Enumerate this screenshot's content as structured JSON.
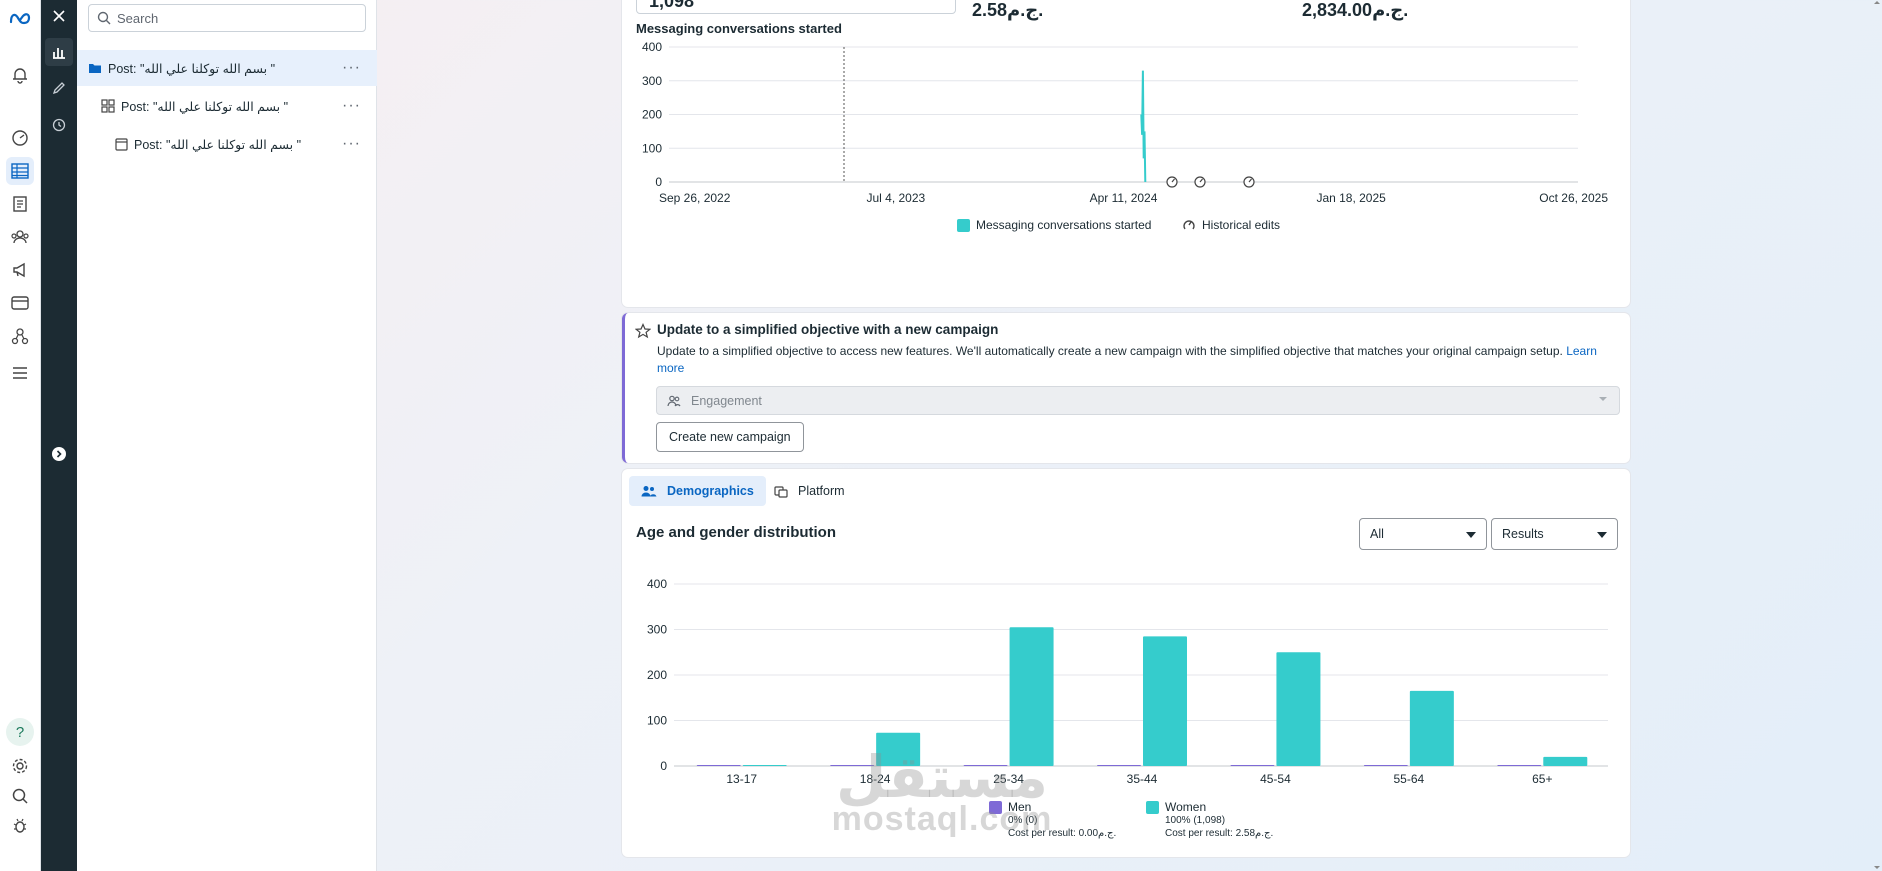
{
  "search": {
    "placeholder": "Search"
  },
  "tree": {
    "items": [
      {
        "label": "Post: \"بسم الله توكلنا علي الله \"",
        "level": "campaign"
      },
      {
        "label": "Post: \"بسم الله توكلنا علي الله \"",
        "level": "adset"
      },
      {
        "label": "Post: \"بسم الله توكلنا علي الله \"",
        "level": "ad"
      }
    ],
    "more": "···"
  },
  "messaging": {
    "top_value": "1,098",
    "top_cost": "2.58ج.م.",
    "top_spent": "2,834.00ج.م.",
    "title": "Messaging conversations started",
    "chart_data": {
      "type": "line",
      "ylim": [
        0,
        400
      ],
      "y_ticks": [
        "400",
        "300",
        "200",
        "100",
        "0"
      ],
      "x_tick_labels": [
        "Sep 26, 2022",
        "Jul 4, 2023",
        "Apr 11, 2024",
        "Jan 18, 2025",
        "Oct 26, 2025"
      ],
      "series": [
        {
          "name": "Messaging conversations started",
          "x": [
            "May 3, 2024",
            "May 4, 2024",
            "May 5, 2024",
            "May 6, 2024",
            "May 7, 2024",
            "May 8, 2024"
          ],
          "values": [
            200,
            140,
            330,
            70,
            150,
            0
          ]
        }
      ],
      "legend": [
        "Messaging conversations started",
        "Historical edits"
      ],
      "legend_position": "bottom"
    }
  },
  "banner": {
    "title": "Update to a simplified objective with a new campaign",
    "desc": "Update to a simplified objective to access new features. We'll automatically create a new campaign with the simplified objective that matches your original campaign setup.",
    "learn_more": "Learn more",
    "objective": "Engagement",
    "button": "Create new campaign"
  },
  "breakdown": {
    "tabs": [
      "Demographics",
      "Platform"
    ],
    "title": "Age and gender distribution",
    "filter_all": "All",
    "filter_metric": "Results",
    "chart_data": {
      "type": "bar",
      "categories": [
        "13-17",
        "18-24",
        "25-34",
        "35-44",
        "45-54",
        "55-64",
        "65+"
      ],
      "ylim": [
        0,
        400
      ],
      "y_ticks": [
        "400",
        "300",
        "200",
        "100",
        "0"
      ],
      "series": [
        {
          "name": "Men",
          "values": [
            0,
            0,
            0,
            0,
            0,
            0,
            0
          ]
        },
        {
          "name": "Women",
          "values": [
            0,
            73,
            305,
            285,
            250,
            165,
            20
          ]
        }
      ]
    },
    "legend": {
      "men": {
        "name": "Men",
        "share": "0% (0)",
        "cost": "Cost per result: 0.00ج.م."
      },
      "women": {
        "name": "Women",
        "share": "100% (1,098)",
        "cost": "Cost per result: 2.58ج.م."
      }
    }
  },
  "watermark": {
    "arabic": "مستقل",
    "latin": "mostaql.com"
  },
  "colors": {
    "teal": "#35cccc",
    "men": "#7e6ad6",
    "accent": "#0a66c2",
    "dark": "#1c2b33"
  }
}
